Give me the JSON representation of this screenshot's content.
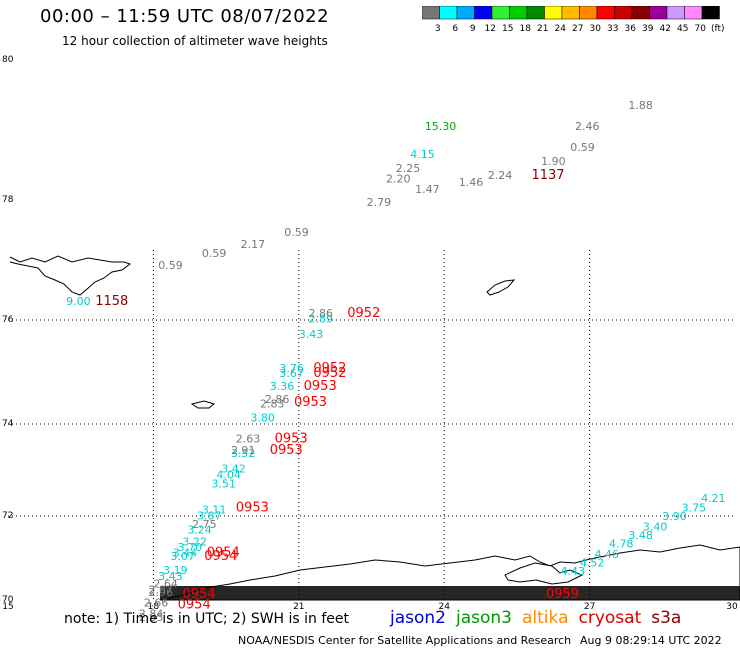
{
  "header": {
    "title": "00:00 – 11:59 UTC 08/07/2022",
    "subtitle": "12 hour collection of altimeter wave heights"
  },
  "colorbar": {
    "colors": [
      "#777777",
      "#00ffff",
      "#00aaff",
      "#0000ff",
      "#33ee33",
      "#00cc00",
      "#008800",
      "#ffff00",
      "#ffbb00",
      "#ff8800",
      "#ff0000",
      "#cc0000",
      "#880000",
      "#990099",
      "#cc99ff",
      "#ff88ff",
      "#000000"
    ],
    "labels": [
      "3",
      "6",
      "9",
      "12",
      "15",
      "18",
      "21",
      "24",
      "27",
      "30",
      "33",
      "36",
      "39",
      "42",
      "45",
      "70",
      "(ft)"
    ]
  },
  "map": {
    "lat_labels": [
      "80",
      "78",
      "76",
      "74",
      "72",
      "70"
    ],
    "lon_labels": [
      "15",
      "18",
      "21",
      "24",
      "27",
      "30"
    ],
    "grid_lon": [
      18,
      21,
      24,
      27
    ],
    "grid_lat": [
      76,
      74,
      72
    ],
    "lon_range": [
      15,
      30
    ],
    "lat_range": [
      70,
      80
    ],
    "observations": [
      {
        "text": "15.30",
        "color": "#00aa00",
        "lon": 23.6,
        "lat": 79.0
      },
      {
        "text": "1.88",
        "color": "#777777",
        "lon": 27.8,
        "lat": 79.3
      },
      {
        "text": "2.46",
        "color": "#777777",
        "lon": 26.7,
        "lat": 79.0
      },
      {
        "text": "4.15",
        "color": "#00cccc",
        "lon": 23.3,
        "lat": 78.6
      },
      {
        "text": "1.90",
        "color": "#777777",
        "lon": 26.0,
        "lat": 78.5
      },
      {
        "text": "0.59",
        "color": "#777777",
        "lon": 26.6,
        "lat": 78.7
      },
      {
        "text": "2.25",
        "color": "#777777",
        "lon": 23.0,
        "lat": 78.4
      },
      {
        "text": "1137",
        "color": "#880000",
        "lon": 25.8,
        "lat": 78.3
      },
      {
        "text": "2.24",
        "color": "#777777",
        "lon": 24.9,
        "lat": 78.3
      },
      {
        "text": "2.20",
        "color": "#777777",
        "lon": 22.8,
        "lat": 78.25
      },
      {
        "text": "1.46",
        "color": "#777777",
        "lon": 24.3,
        "lat": 78.2
      },
      {
        "text": "1.47",
        "color": "#777777",
        "lon": 23.4,
        "lat": 78.1
      },
      {
        "text": "2.79",
        "color": "#777777",
        "lon": 22.4,
        "lat": 77.9
      },
      {
        "text": "0.59",
        "color": "#777777",
        "lon": 20.7,
        "lat": 77.4
      },
      {
        "text": "2.17",
        "color": "#777777",
        "lon": 19.8,
        "lat": 77.2
      },
      {
        "text": "0.59",
        "color": "#777777",
        "lon": 19.0,
        "lat": 77.05
      },
      {
        "text": "0.59",
        "color": "#777777",
        "lon": 18.1,
        "lat": 76.85
      },
      {
        "text": "9.00",
        "color": "#00cccc",
        "lon": 16.2,
        "lat": 76.25
      },
      {
        "text": "1158",
        "color": "#880000",
        "lon": 16.8,
        "lat": 76.25
      },
      {
        "text": "2.86",
        "color": "#777777",
        "lon": 21.2,
        "lat": 76.05
      },
      {
        "text": "2.89",
        "color": "#00cccc",
        "lon": 21.2,
        "lat": 75.95
      },
      {
        "text": "0952",
        "color": "#ff0000",
        "lon": 22.0,
        "lat": 76.05
      },
      {
        "text": "3.43",
        "color": "#00cccc",
        "lon": 21.0,
        "lat": 75.65
      },
      {
        "text": "3.76",
        "color": "#00cccc",
        "lon": 20.6,
        "lat": 75.0
      },
      {
        "text": "3.67",
        "color": "#00cccc",
        "lon": 20.6,
        "lat": 74.9
      },
      {
        "text": "0952",
        "color": "#ff0000",
        "lon": 21.3,
        "lat": 75.0
      },
      {
        "text": "0952",
        "color": "#ff0000",
        "lon": 21.3,
        "lat": 74.9
      },
      {
        "text": "3.36",
        "color": "#00cccc",
        "lon": 20.4,
        "lat": 74.65
      },
      {
        "text": "0953",
        "color": "#ff0000",
        "lon": 21.1,
        "lat": 74.65
      },
      {
        "text": "2.86",
        "color": "#777777",
        "lon": 20.3,
        "lat": 74.4
      },
      {
        "text": "2.83",
        "color": "#777777",
        "lon": 20.2,
        "lat": 74.32
      },
      {
        "text": "0953",
        "color": "#ff0000",
        "lon": 20.9,
        "lat": 74.35
      },
      {
        "text": "3.80",
        "color": "#00cccc",
        "lon": 20.0,
        "lat": 74.05
      },
      {
        "text": "2.63",
        "color": "#777777",
        "lon": 19.7,
        "lat": 73.6
      },
      {
        "text": "0953",
        "color": "#ff0000",
        "lon": 20.5,
        "lat": 73.6
      },
      {
        "text": "2.91",
        "color": "#777777",
        "lon": 19.6,
        "lat": 73.35
      },
      {
        "text": "3.52",
        "color": "#00cccc",
        "lon": 19.6,
        "lat": 73.28
      },
      {
        "text": "0953",
        "color": "#ff0000",
        "lon": 20.4,
        "lat": 73.35
      },
      {
        "text": "3.42",
        "color": "#00cccc",
        "lon": 19.4,
        "lat": 72.95
      },
      {
        "text": "4.04",
        "color": "#00cccc",
        "lon": 19.3,
        "lat": 72.82
      },
      {
        "text": "3.51",
        "color": "#00cccc",
        "lon": 19.2,
        "lat": 72.62
      },
      {
        "text": "3.11",
        "color": "#00cccc",
        "lon": 19.0,
        "lat": 72.05
      },
      {
        "text": "0953",
        "color": "#ff0000",
        "lon": 19.7,
        "lat": 72.1
      },
      {
        "text": "3.87",
        "color": "#00cccc",
        "lon": 18.9,
        "lat": 71.92
      },
      {
        "text": "2.75",
        "color": "#777777",
        "lon": 18.8,
        "lat": 71.72
      },
      {
        "text": "3.24",
        "color": "#00cccc",
        "lon": 18.7,
        "lat": 71.58
      },
      {
        "text": "3.22",
        "color": "#00cccc",
        "lon": 18.6,
        "lat": 71.3
      },
      {
        "text": "3.70",
        "color": "#00cccc",
        "lon": 18.5,
        "lat": 71.17
      },
      {
        "text": "3.44",
        "color": "#00cccc",
        "lon": 18.4,
        "lat": 71.03
      },
      {
        "text": "3.07",
        "color": "#00cccc",
        "lon": 18.35,
        "lat": 70.95
      },
      {
        "text": "0954",
        "color": "#ff0000",
        "lon": 19.1,
        "lat": 71.03
      },
      {
        "text": "0954",
        "color": "#ff0000",
        "lon": 19.05,
        "lat": 70.95
      },
      {
        "text": "3.19",
        "color": "#00cccc",
        "lon": 18.2,
        "lat": 70.62
      },
      {
        "text": "3.43",
        "color": "#00cccc",
        "lon": 18.1,
        "lat": 70.48
      },
      {
        "text": "2.64",
        "color": "#777777",
        "lon": 18.0,
        "lat": 70.3
      },
      {
        "text": "2.97",
        "color": "#777777",
        "lon": 17.9,
        "lat": 70.15
      },
      {
        "text": "2.96",
        "color": "#777777",
        "lon": 17.9,
        "lat": 70.1
      },
      {
        "text": "0954",
        "color": "#ff0000",
        "lon": 18.6,
        "lat": 70.05
      },
      {
        "text": "2.66",
        "color": "#777777",
        "lon": 17.8,
        "lat": 69.85
      },
      {
        "text": "0954",
        "color": "#ff0000",
        "lon": 18.5,
        "lat": 69.8
      },
      {
        "text": "2.84",
        "color": "#777777",
        "lon": 17.7,
        "lat": 69.58
      },
      {
        "text": "2.85",
        "color": "#777777",
        "lon": 17.7,
        "lat": 69.5
      },
      {
        "text": "4.21",
        "color": "#00cccc",
        "lon": 29.3,
        "lat": 72.3
      },
      {
        "text": "3.75",
        "color": "#00cccc",
        "lon": 28.9,
        "lat": 72.1
      },
      {
        "text": "3.90",
        "color": "#00cccc",
        "lon": 28.5,
        "lat": 71.9
      },
      {
        "text": "3.40",
        "color": "#00cccc",
        "lon": 28.1,
        "lat": 71.65
      },
      {
        "text": "3.48",
        "color": "#00cccc",
        "lon": 27.8,
        "lat": 71.45
      },
      {
        "text": "4.78",
        "color": "#00cccc",
        "lon": 27.4,
        "lat": 71.25
      },
      {
        "text": "4.46",
        "color": "#00cccc",
        "lon": 27.1,
        "lat": 71.0
      },
      {
        "text": "4.52",
        "color": "#00cccc",
        "lon": 26.8,
        "lat": 70.8
      },
      {
        "text": "4.43",
        "color": "#00cccc",
        "lon": 26.4,
        "lat": 70.6
      },
      {
        "text": "0959",
        "color": "#ff0000",
        "lon": 26.1,
        "lat": 70.05
      }
    ]
  },
  "footer": {
    "note": "note:  1) Time is in UTC;  2) SWH is in feet",
    "missions": [
      {
        "label": "jason2",
        "color": "#0000dd"
      },
      {
        "label": "jason3",
        "color": "#009900"
      },
      {
        "label": "altika",
        "color": "#ff8800"
      },
      {
        "label": "cryosat",
        "color": "#dd0000"
      },
      {
        "label": "s3a",
        "color": "#880000"
      }
    ],
    "credit": "NOAA/NESDIS Center for Satellite Applications and Research",
    "timestamp": "Aug  9 08:29:14 UTC 2022"
  }
}
